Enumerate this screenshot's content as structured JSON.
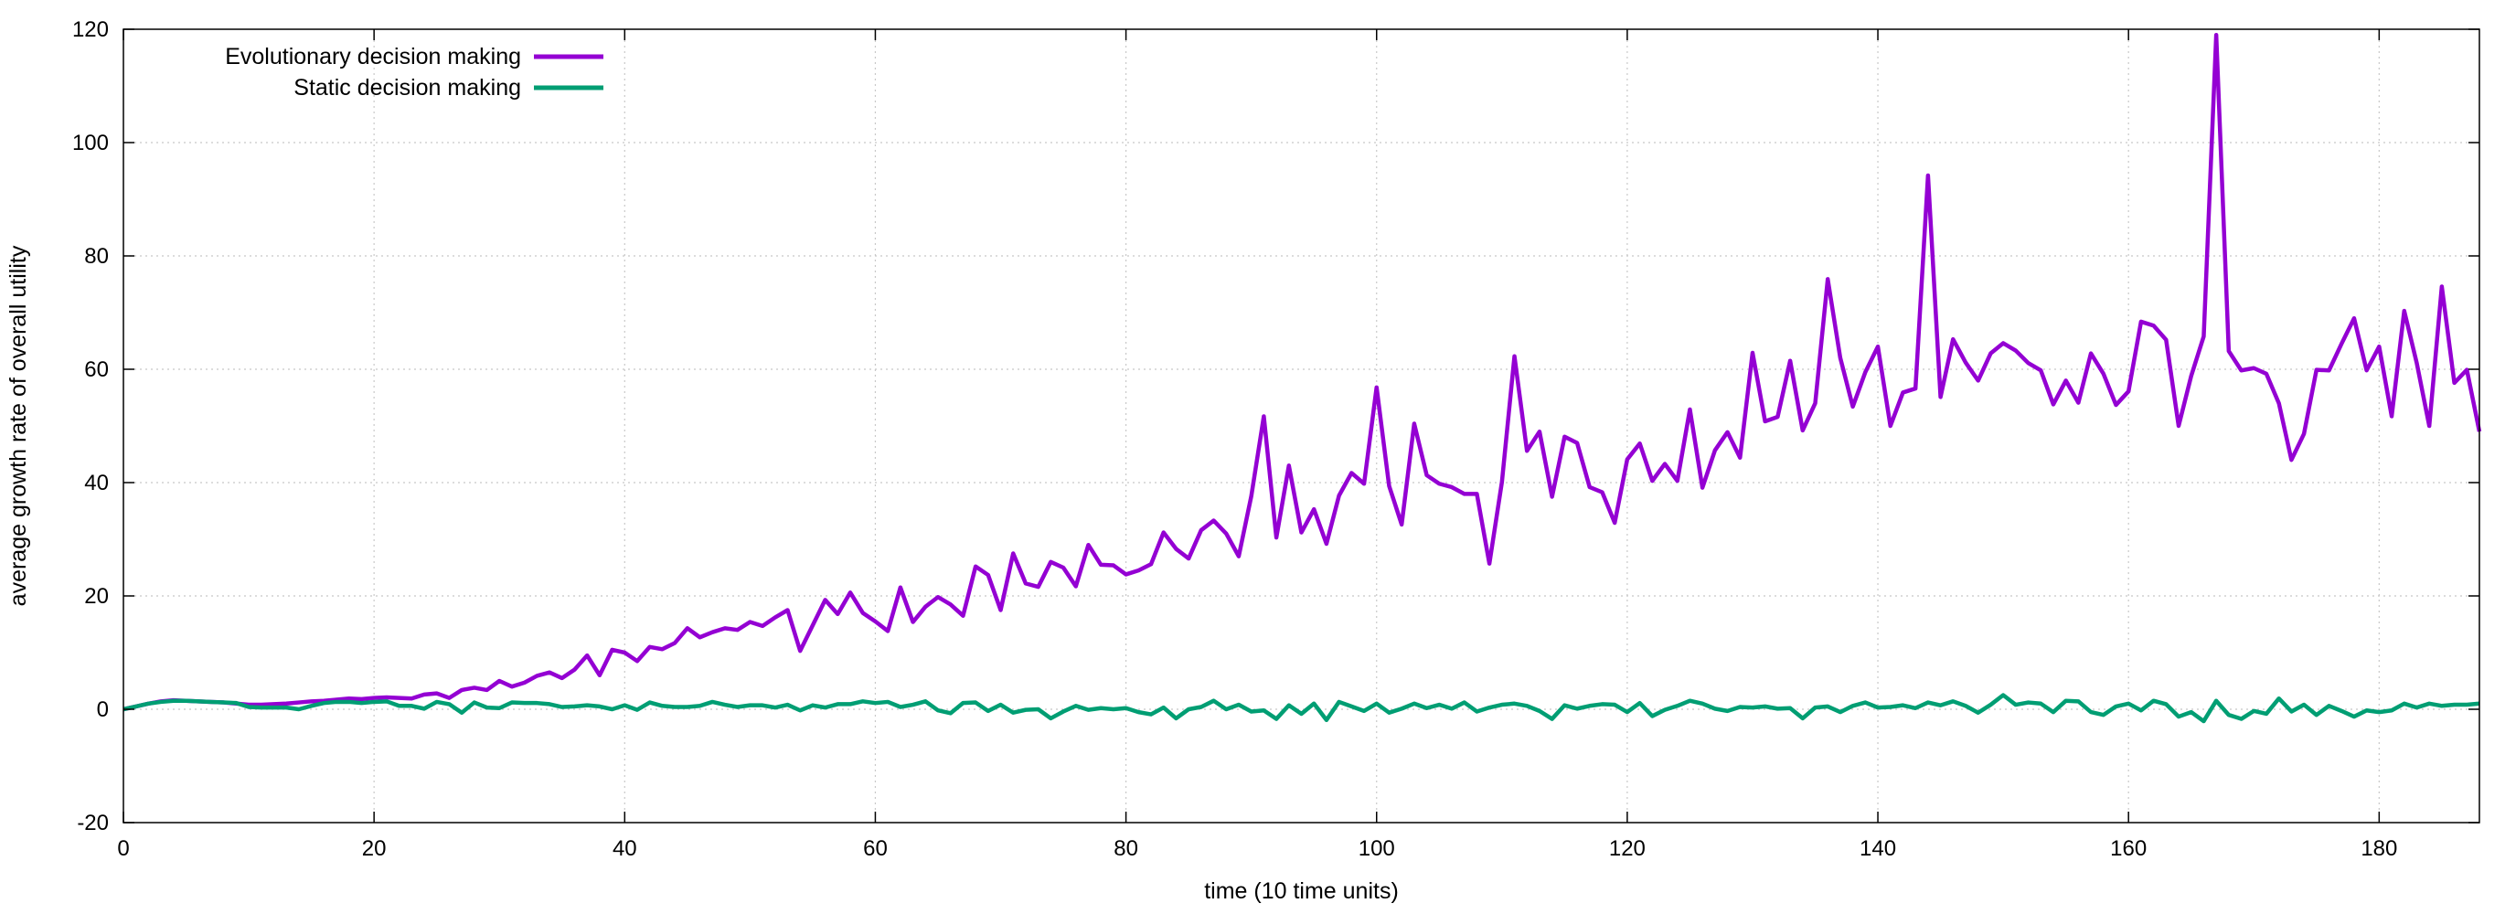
{
  "chart_data": {
    "type": "line",
    "title": "",
    "xlabel": "time (10 time units)",
    "ylabel": "average growth rate of overall utility",
    "xlim": [
      0,
      188
    ],
    "ylim": [
      -20,
      120
    ],
    "x_ticks": [
      0,
      20,
      40,
      60,
      80,
      100,
      120,
      140,
      160,
      180
    ],
    "y_ticks": [
      -20,
      0,
      20,
      40,
      60,
      80,
      100,
      120
    ],
    "grid": true,
    "legend_position": "top-left",
    "series": [
      {
        "name": "Evolutionary decision making",
        "color": "#9400d3",
        "values": [
          0,
          0.5,
          1,
          1.4,
          1.6,
          1.5,
          1.4,
          1.3,
          1.2,
          1,
          0.8,
          0.8,
          0.9,
          1,
          1.2,
          1.4,
          1.5,
          1.7,
          1.9,
          1.8,
          2,
          2.1,
          2,
          1.9,
          2.6,
          2.8,
          2,
          3.4,
          3.8,
          3.4,
          5,
          4,
          4.7,
          5.9,
          6.5,
          5.5,
          7,
          9.5,
          6,
          10.5,
          10,
          8.5,
          11,
          10.6,
          11.7,
          14.3,
          12.7,
          13.6,
          14.3,
          14,
          15.4,
          14.7,
          16.2,
          17.5,
          10.3,
          14.8,
          19.3,
          16.8,
          20.6,
          17,
          15.5,
          13.8,
          21.5,
          15.4,
          18.1,
          19.8,
          18.5,
          16.5,
          25.2,
          23.7,
          17.5,
          27.5,
          22.2,
          21.6,
          26,
          25,
          21.7,
          29,
          25.5,
          25.4,
          23.8,
          24.5,
          25.6,
          31.2,
          28.3,
          26.6,
          31.6,
          33.3,
          31,
          27,
          37.6,
          51.7,
          30.3,
          43,
          31.2,
          35.3,
          29.2,
          37.7,
          41.7,
          39.8,
          56.8,
          39.4,
          32.6,
          50.4,
          41.3,
          39.8,
          39.2,
          38,
          38,
          25.7,
          40.1,
          62.3,
          45.6,
          49,
          37.5,
          48.1,
          47,
          39.2,
          38.3,
          32.9,
          44.1,
          46.9,
          40.3,
          43.3,
          40.3,
          52.9,
          39.1,
          45.7,
          48.9,
          44.4,
          62.9,
          50.8,
          51.6,
          61.5,
          49.2,
          54,
          75.9,
          62,
          53.4,
          59.5,
          64,
          50,
          55.9,
          56.6,
          94.2,
          55.1,
          65.3,
          61.2,
          58,
          62.8,
          64.6,
          63.3,
          61.1,
          59.8,
          53.8,
          58,
          54.1,
          62.8,
          59.2,
          53.7,
          56.1,
          68.4,
          67.7,
          65.2,
          50,
          58.8,
          65.8,
          119,
          63.2,
          59.8,
          60.2,
          59.2,
          54,
          44,
          48.6,
          59.9,
          59.8,
          64.5,
          69,
          59.8,
          64,
          51.7,
          70.3,
          61.1,
          50,
          74.6,
          57.6,
          59.9,
          49
        ]
      },
      {
        "name": "Static decision making",
        "color": "#009e73",
        "values": [
          0,
          0.5,
          1,
          1.3,
          1.5,
          1.5,
          1.4,
          1.3,
          1.2,
          1.1,
          0.4,
          0.3,
          0.3,
          0.3,
          0,
          0.6,
          1.1,
          1.3,
          1.3,
          1.1,
          1.3,
          1.4,
          0.6,
          0.6,
          0.1,
          1.3,
          0.9,
          -0.6,
          1.2,
          0.3,
          0.2,
          1.2,
          1.1,
          1.1,
          0.9,
          0.4,
          0.5,
          0.7,
          0.5,
          0,
          0.7,
          -0.1,
          1.2,
          0.6,
          0.4,
          0.4,
          0.6,
          1.3,
          0.8,
          0.4,
          0.7,
          0.7,
          0.3,
          0.8,
          -0.2,
          0.7,
          0.3,
          0.9,
          0.9,
          1.4,
          1.1,
          1.3,
          0.4,
          0.8,
          1.4,
          -0.2,
          -0.7,
          1.1,
          1.2,
          -0.3,
          0.8,
          -0.6,
          -0.1,
          0,
          -1.6,
          -0.4,
          0.6,
          -0.1,
          0.2,
          0,
          0.2,
          -0.5,
          -0.9,
          0.3,
          -1.6,
          0,
          0.4,
          1.5,
          0,
          0.8,
          -0.4,
          -0.2,
          -1.7,
          0.7,
          -0.8,
          1,
          -1.9,
          1.3,
          0.5,
          -0.3,
          1,
          -0.6,
          0.1,
          1,
          0.2,
          0.8,
          0.1,
          1.2,
          -0.4,
          0.3,
          0.8,
          1,
          0.6,
          -0.3,
          -1.7,
          0.7,
          0.1,
          0.6,
          0.9,
          0.8,
          -0.5,
          1.1,
          -1.2,
          -0.1,
          0.6,
          1.5,
          1,
          0.1,
          -0.3,
          0.4,
          0.3,
          0.5,
          0.1,
          0.2,
          -1.6,
          0.3,
          0.5,
          -0.5,
          0.6,
          1.2,
          0.3,
          0.4,
          0.7,
          0.2,
          1.2,
          0.7,
          1.4,
          0.6,
          -0.6,
          0.8,
          2.5,
          0.8,
          1.2,
          1,
          -0.5,
          1.5,
          1.4,
          -0.5,
          -1,
          0.5,
          1,
          -0.2,
          1.5,
          0.9,
          -1.3,
          -0.5,
          -2.1,
          1.5,
          -1,
          -1.7,
          -0.3,
          -0.8,
          1.9,
          -0.4,
          0.8,
          -1,
          0.6,
          -0.3,
          -1.3,
          -0.2,
          -0.5,
          -0.2,
          1,
          0.3,
          1,
          0.6,
          0.8,
          0.8,
          1
        ]
      }
    ]
  }
}
